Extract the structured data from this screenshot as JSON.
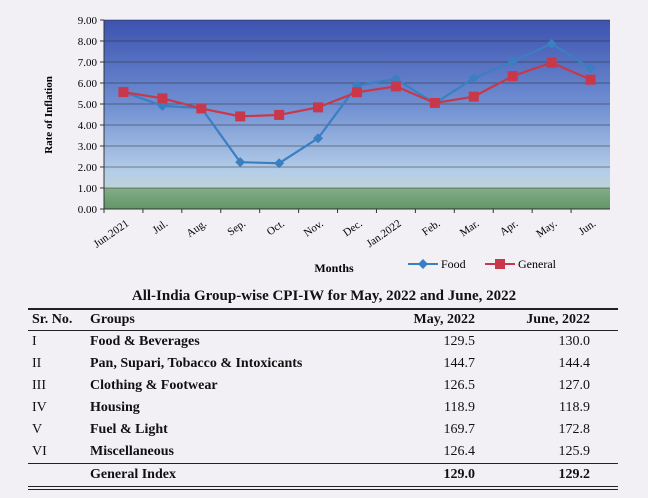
{
  "chart_data": {
    "type": "line",
    "ylabel": "Rate of Inflation",
    "xlabel": "Months",
    "categories": [
      "Jun.2021",
      "Jul.",
      "Aug.",
      "Sep.",
      "Oct.",
      "Nov.",
      "Dec.",
      "Jan.2022",
      "Feb.",
      "Mar.",
      "Apr.",
      "May.",
      "Jun."
    ],
    "y_ticks": [
      "0.00",
      "1.00",
      "2.00",
      "3.00",
      "4.00",
      "5.00",
      "6.00",
      "7.00",
      "8.00",
      "9.00"
    ],
    "ylim": [
      0,
      9
    ],
    "grid": true,
    "legend_position": "bottom-right",
    "series": [
      {
        "name": "Food",
        "color": "#3a7fc1",
        "marker": "diamond",
        "values": [
          5.58,
          4.91,
          4.81,
          2.23,
          2.18,
          3.37,
          5.88,
          6.19,
          5.03,
          6.22,
          7.03,
          7.87,
          6.7
        ]
      },
      {
        "name": "General",
        "color": "#c8384a",
        "marker": "square",
        "values": [
          5.57,
          5.27,
          4.79,
          4.41,
          4.48,
          4.84,
          5.56,
          5.84,
          5.05,
          5.35,
          6.33,
          6.97,
          6.16
        ]
      }
    ]
  },
  "table": {
    "title": "All-India Group-wise CPI-IW for May, 2022 and June, 2022",
    "headers": [
      "Sr. No.",
      "Groups",
      "May, 2022",
      "June, 2022"
    ],
    "rows": [
      {
        "sr": "I",
        "group": "Food & Beverages",
        "may": "129.5",
        "june": "130.0"
      },
      {
        "sr": "II",
        "group": "Pan, Supari, Tobacco & Intoxicants",
        "may": "144.7",
        "june": "144.4"
      },
      {
        "sr": "III",
        "group": "Clothing & Footwear",
        "may": "126.5",
        "june": "127.0"
      },
      {
        "sr": "IV",
        "group": "Housing",
        "may": "118.9",
        "june": "118.9"
      },
      {
        "sr": "V",
        "group": "Fuel & Light",
        "may": "169.7",
        "june": "172.8"
      },
      {
        "sr": "VI",
        "group": "Miscellaneous",
        "may": "126.4",
        "june": "125.9"
      }
    ],
    "total": {
      "group": "General Index",
      "may": "129.0",
      "june": "129.2"
    }
  }
}
